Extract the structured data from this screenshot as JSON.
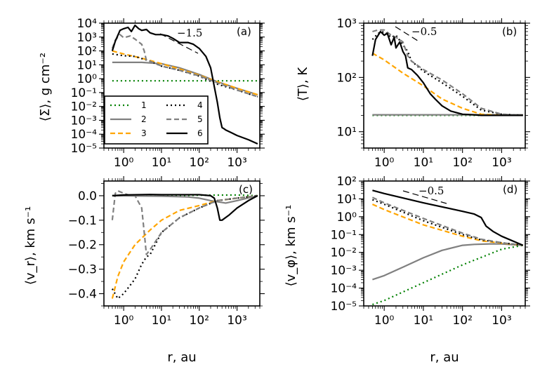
{
  "figure": {
    "xlabel": "r, au",
    "legend_entries": [
      "1",
      "2",
      "3",
      "4",
      "5",
      "6"
    ]
  },
  "styles": {
    "1": {
      "color": "#008000",
      "dash": "2,4",
      "label": "1"
    },
    "2": {
      "color": "#808080",
      "dash": "",
      "label": "2"
    },
    "3": {
      "color": "#ffa500",
      "dash": "7,4",
      "label": "3"
    },
    "4": {
      "color": "#000000",
      "dash": "2,4",
      "label": "4"
    },
    "5": {
      "color": "#808080",
      "dash": "7,4",
      "label": "5"
    },
    "6": {
      "color": "#000000",
      "dash": "",
      "label": "6"
    }
  },
  "chart_data": [
    {
      "type": "line",
      "panel": "(a)",
      "ylabel": "⟨Σ⟩, g cm⁻²",
      "xscale": "log",
      "yscale": "log",
      "xlim": [
        0.3,
        4000
      ],
      "ylim": [
        1e-05,
        10000
      ],
      "xticks": [
        "10^0",
        "10^1",
        "10^2",
        "10^3"
      ],
      "yticks": [
        "10^-5",
        "10^-4",
        "10^-3",
        "10^-2",
        "10^-1",
        "10^0",
        "10^1",
        "10^2",
        "10^3",
        "10^4"
      ],
      "legend": "bottom-left",
      "annotation": {
        "text": "−1.5",
        "slope": -1.5
      },
      "series": [
        {
          "name": "1",
          "x": [
            0.5,
            1,
            10,
            100,
            1000,
            3500
          ],
          "y": [
            0.7,
            0.7,
            0.7,
            0.7,
            0.7,
            0.7
          ]
        },
        {
          "name": "2",
          "x": [
            0.5,
            1,
            3,
            10,
            30,
            100,
            300,
            1000,
            3500
          ],
          "y": [
            15,
            15,
            15,
            12,
            6,
            2,
            0.6,
            0.2,
            0.07
          ]
        },
        {
          "name": "3",
          "x": [
            0.5,
            1,
            3,
            10,
            30,
            100,
            300,
            1000,
            3500
          ],
          "y": [
            100,
            60,
            30,
            12,
            5,
            1.8,
            0.6,
            0.2,
            0.07
          ]
        },
        {
          "name": "4",
          "x": [
            0.5,
            1,
            2,
            5,
            10,
            30,
            100,
            300,
            1000,
            3500
          ],
          "y": [
            60,
            45,
            40,
            18,
            8,
            4,
            1.5,
            0.4,
            0.15,
            0.05
          ]
        },
        {
          "name": "5",
          "x": [
            0.5,
            0.6,
            0.8,
            1,
            1.5,
            2,
            3,
            3.5,
            4,
            5,
            10,
            30,
            100,
            300,
            1000,
            3500
          ],
          "y": [
            150,
            600,
            1500,
            900,
            1200,
            700,
            300,
            100,
            20,
            18,
            8,
            4,
            1.6,
            0.5,
            0.15,
            0.05
          ]
        },
        {
          "name": "6",
          "x": [
            0.5,
            0.6,
            0.8,
            1,
            1.3,
            1.6,
            2,
            2.5,
            3,
            4,
            5,
            7,
            10,
            15,
            20,
            30,
            50,
            70,
            100,
            150,
            200,
            300,
            350,
            400,
            450,
            500,
            700,
            1000,
            2000,
            3500
          ],
          "y": [
            100,
            500,
            3000,
            4000,
            5000,
            2500,
            7000,
            4000,
            3000,
            3500,
            2000,
            1500,
            1500,
            1200,
            800,
            400,
            400,
            300,
            150,
            40,
            6,
            0.02,
            0.0015,
            0.0003,
            0.00025,
            0.0002,
            0.00013,
            8e-05,
            4e-05,
            2e-05
          ]
        }
      ]
    },
    {
      "type": "line",
      "panel": "(b)",
      "ylabel": "⟨T⟩, K",
      "xscale": "log",
      "yscale": "log",
      "xlim": [
        0.3,
        4000
      ],
      "ylim": [
        5,
        1000
      ],
      "xticks": [
        "10^0",
        "10^1",
        "10^2",
        "10^3"
      ],
      "yticks": [
        "10^1",
        "10^2",
        "10^3"
      ],
      "annotation": {
        "text": "−0.5",
        "slope": -0.5
      },
      "series": [
        {
          "name": "1",
          "x": [
            0.5,
            100,
            3500
          ],
          "y": [
            20,
            20,
            20
          ]
        },
        {
          "name": "2",
          "x": [
            0.5,
            100,
            3500
          ],
          "y": [
            20.5,
            20.5,
            20.5
          ]
        },
        {
          "name": "3",
          "x": [
            0.5,
            1,
            3,
            10,
            30,
            100,
            300,
            1000,
            3500
          ],
          "y": [
            280,
            210,
            120,
            70,
            40,
            27,
            21,
            20,
            20
          ]
        },
        {
          "name": "4",
          "x": [
            0.5,
            0.7,
            1,
            1.5,
            2,
            3,
            4,
            5,
            10,
            30,
            100,
            300,
            1000,
            3500
          ],
          "y": [
            500,
            650,
            700,
            550,
            600,
            400,
            300,
            200,
            130,
            80,
            45,
            25,
            21,
            20
          ]
        },
        {
          "name": "5",
          "x": [
            0.5,
            0.7,
            1,
            1.5,
            2,
            3,
            4,
            5,
            10,
            30,
            100,
            300,
            1000,
            3500
          ],
          "y": [
            700,
            750,
            750,
            600,
            550,
            450,
            250,
            200,
            140,
            90,
            50,
            27,
            21,
            20
          ]
        },
        {
          "name": "6",
          "x": [
            0.5,
            0.6,
            0.8,
            1,
            1.2,
            1.5,
            1.8,
            2,
            2.5,
            3,
            3.5,
            4,
            5,
            7,
            10,
            15,
            20,
            30,
            50,
            100,
            200,
            300,
            1000,
            3500
          ],
          "y": [
            250,
            500,
            700,
            600,
            650,
            400,
            550,
            350,
            450,
            300,
            250,
            150,
            140,
            110,
            80,
            50,
            40,
            30,
            24,
            21,
            20.5,
            20,
            20,
            20
          ]
        }
      ]
    },
    {
      "type": "line",
      "panel": "(c)",
      "ylabel": "⟨v_r⟩, km s⁻¹",
      "xscale": "log",
      "yscale": "linear",
      "xlim": [
        0.3,
        4000
      ],
      "ylim": [
        -0.45,
        0.06
      ],
      "xticks": [
        "10^0",
        "10^1",
        "10^2",
        "10^3"
      ],
      "yticks": [
        "0.0",
        "−0.1",
        "−0.2",
        "−0.3",
        "−0.4"
      ],
      "series": [
        {
          "name": "1",
          "x": [
            0.5,
            10,
            100,
            1000,
            3500
          ],
          "y": [
            0,
            0,
            0.002,
            0.003,
            0
          ]
        },
        {
          "name": "2",
          "x": [
            0.5,
            10,
            50,
            100,
            200,
            500,
            1000,
            3500
          ],
          "y": [
            0,
            -0.002,
            -0.005,
            -0.01,
            -0.02,
            -0.03,
            -0.02,
            0
          ]
        },
        {
          "name": "3",
          "x": [
            0.5,
            0.7,
            1,
            2,
            5,
            10,
            30,
            100,
            300,
            1000,
            3500
          ],
          "y": [
            -0.42,
            -0.33,
            -0.27,
            -0.2,
            -0.14,
            -0.1,
            -0.06,
            -0.04,
            -0.02,
            -0.01,
            0
          ]
        },
        {
          "name": "4",
          "x": [
            0.5,
            0.7,
            1,
            2,
            3,
            4,
            5,
            10,
            30,
            100,
            300,
            1000,
            3500
          ],
          "y": [
            -0.38,
            -0.42,
            -0.4,
            -0.34,
            -0.28,
            -0.25,
            -0.24,
            -0.15,
            -0.09,
            -0.05,
            -0.02,
            -0.01,
            0
          ]
        },
        {
          "name": "5",
          "x": [
            0.5,
            0.6,
            0.7,
            1,
            1.5,
            2,
            3,
            3.5,
            4,
            5,
            10,
            30,
            100,
            300,
            1000,
            3500
          ],
          "y": [
            -0.1,
            0.01,
            0.02,
            0.01,
            0,
            0,
            -0.05,
            -0.15,
            -0.24,
            -0.22,
            -0.15,
            -0.09,
            -0.05,
            -0.02,
            -0.01,
            0
          ]
        },
        {
          "name": "6",
          "x": [
            0.5,
            1,
            5,
            10,
            50,
            100,
            200,
            250,
            300,
            350,
            400,
            600,
            1000,
            2000,
            3500
          ],
          "y": [
            0,
            0.003,
            0.005,
            0.004,
            0.004,
            0.004,
            0,
            -0.01,
            -0.05,
            -0.1,
            -0.1,
            -0.08,
            -0.05,
            -0.02,
            0
          ]
        }
      ]
    },
    {
      "type": "line",
      "panel": "(d)",
      "ylabel": "⟨v_φ⟩, km s⁻¹",
      "xscale": "log",
      "yscale": "log",
      "xlim": [
        0.3,
        4000
      ],
      "ylim": [
        1e-05,
        100
      ],
      "xticks": [
        "10^0",
        "10^1",
        "10^2",
        "10^3"
      ],
      "yticks": [
        "10^-5",
        "10^-4",
        "10^-3",
        "10^-2",
        "10^-1",
        "10^0",
        "10^1",
        "10^2"
      ],
      "annotation": {
        "text": "−0.5",
        "slope": -0.5
      },
      "series": [
        {
          "name": "1",
          "x": [
            0.5,
            1,
            10,
            100,
            1000,
            3500
          ],
          "y": [
            1.2e-05,
            2e-05,
            0.0002,
            0.002,
            0.015,
            0.025
          ]
        },
        {
          "name": "2",
          "x": [
            0.5,
            1,
            3,
            10,
            30,
            100,
            200,
            500,
            1000,
            3500
          ],
          "y": [
            0.0003,
            0.0005,
            0.0015,
            0.005,
            0.013,
            0.025,
            0.028,
            0.03,
            0.03,
            0.025
          ]
        },
        {
          "name": "3",
          "x": [
            0.5,
            1,
            10,
            100,
            300,
            1000,
            3500
          ],
          "y": [
            5,
            2.5,
            0.35,
            0.08,
            0.045,
            0.033,
            0.025
          ]
        },
        {
          "name": "4",
          "x": [
            0.5,
            1,
            10,
            100,
            300,
            1000,
            3500
          ],
          "y": [
            9,
            5,
            0.6,
            0.1,
            0.05,
            0.035,
            0.025
          ]
        },
        {
          "name": "5",
          "x": [
            0.5,
            1,
            10,
            100,
            300,
            1000,
            3500
          ],
          "y": [
            12,
            6,
            0.8,
            0.12,
            0.055,
            0.035,
            0.025
          ]
        },
        {
          "name": "6",
          "x": [
            0.5,
            1,
            10,
            100,
            200,
            300,
            400,
            600,
            1000,
            3500
          ],
          "y": [
            30,
            20,
            6,
            2,
            1.4,
            0.9,
            0.3,
            0.15,
            0.08,
            0.025
          ]
        }
      ]
    }
  ]
}
